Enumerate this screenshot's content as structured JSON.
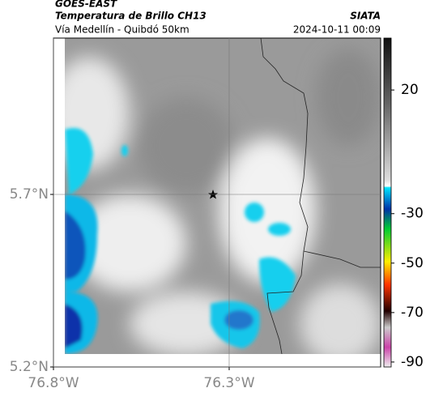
{
  "header": {
    "title": "GOES-EAST",
    "subtitle": "Temperatura de Brillo CH13",
    "source": "SIATA",
    "route": "Vía Medellín - Quibdó 50km",
    "datetime": "2024-10-11 00:09"
  },
  "map": {
    "xlim": [
      -76.8,
      -75.869
    ],
    "ylim": [
      5.2,
      6.153
    ],
    "xticks": [
      {
        "value": -76.8,
        "label": "76.8°W"
      },
      {
        "value": -76.3,
        "label": "76.3°W"
      }
    ],
    "yticks": [
      {
        "value": 5.7,
        "label": "5.7°N"
      },
      {
        "value": 5.2,
        "label": "5.2°N"
      }
    ]
  },
  "colorbar": {
    "clim": [
      41,
      -92
    ],
    "ticks": [
      20,
      -30,
      -50,
      -70,
      -90
    ]
  }
}
